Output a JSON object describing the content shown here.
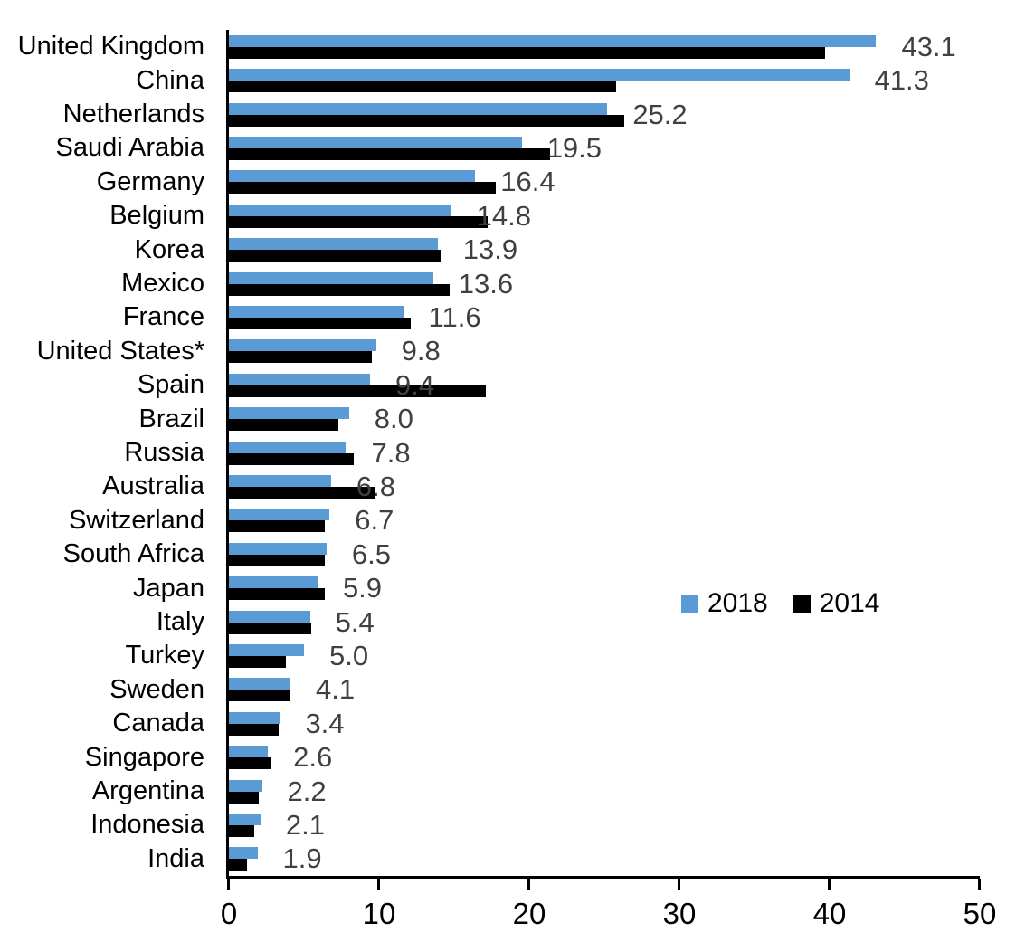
{
  "chart_data": {
    "type": "bar",
    "orientation": "horizontal",
    "title": "",
    "xlabel": "",
    "ylabel": "",
    "xlim": [
      0,
      50
    ],
    "x_ticks": [
      0,
      10,
      20,
      30,
      40,
      50
    ],
    "grid": false,
    "legend_position": "middle-right",
    "categories": [
      "United Kingdom",
      "China",
      "Netherlands",
      "Saudi Arabia",
      "Germany",
      "Belgium",
      "Korea",
      "Mexico",
      "France",
      "United States*",
      "Spain",
      "Brazil",
      "Russia",
      "Australia",
      "Switzerland",
      "South Africa",
      "Japan",
      "Italy",
      "Turkey",
      "Sweden",
      "Canada",
      "Singapore",
      "Argentina",
      "Indonesia",
      "India"
    ],
    "series": [
      {
        "name": "2018",
        "color": "#5B9BD5",
        "values": [
          43.1,
          41.3,
          25.2,
          19.5,
          16.4,
          14.8,
          13.9,
          13.6,
          11.6,
          9.8,
          9.4,
          8.0,
          7.8,
          6.8,
          6.7,
          6.5,
          5.9,
          5.4,
          5.0,
          4.1,
          3.4,
          2.6,
          2.2,
          2.1,
          1.9
        ]
      },
      {
        "name": "2014",
        "color": "#000000",
        "values": [
          39.7,
          25.8,
          26.3,
          21.4,
          17.8,
          17.2,
          14.1,
          14.7,
          12.1,
          9.5,
          17.1,
          7.3,
          8.3,
          9.7,
          6.4,
          6.4,
          6.4,
          5.5,
          3.8,
          4.1,
          3.3,
          2.8,
          2.0,
          1.7,
          1.2
        ]
      }
    ],
    "data_labels": {
      "series": "2018",
      "labels": [
        "43.1",
        "41.3",
        "25.2",
        "19.5",
        "16.4",
        "14.8",
        "13.9",
        "13.6",
        "11.6",
        "9.8",
        "9.4",
        "8.0",
        "7.8",
        "6.8",
        "6.7",
        "6.5",
        "5.9",
        "5.4",
        "5.0",
        "4.1",
        "3.4",
        "2.6",
        "2.2",
        "2.1",
        "1.9"
      ],
      "color": "#404040"
    },
    "colors": {
      "axis": "#000000",
      "background": "#FFFFFF",
      "category_text": "#000000",
      "tick_text": "#000000"
    }
  }
}
